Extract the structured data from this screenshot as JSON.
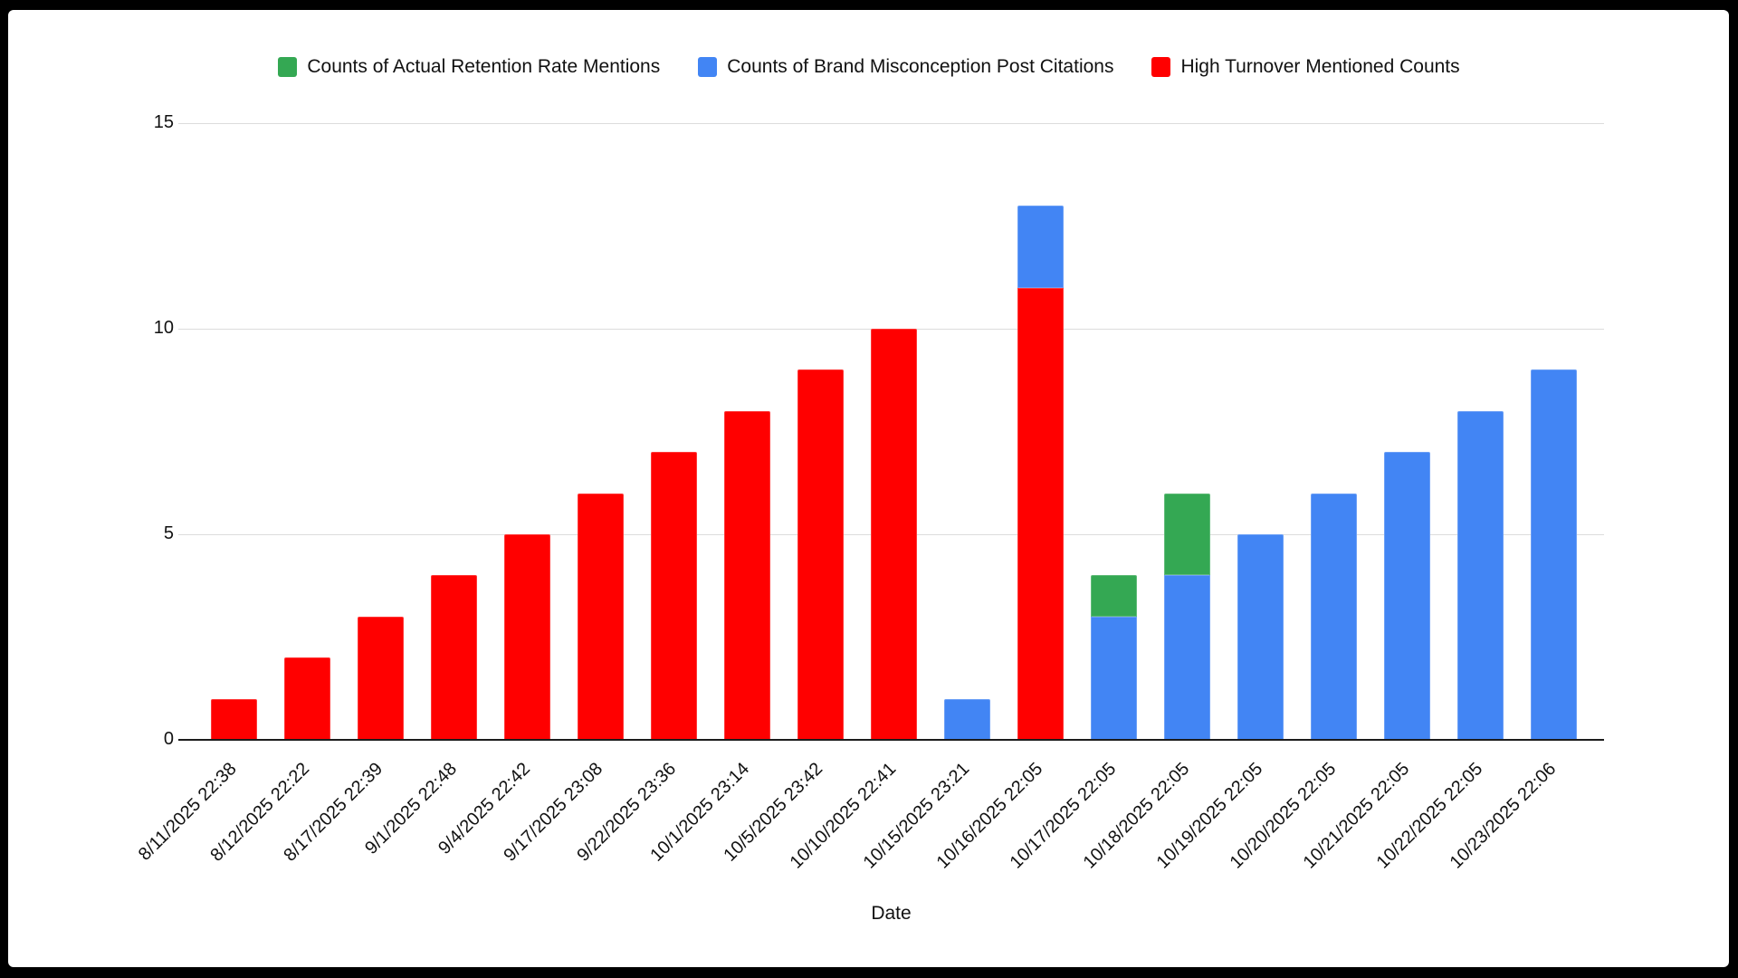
{
  "legend": {
    "items": [
      {
        "label": "Counts of Actual Retention Rate Mentions",
        "color": "#34a853"
      },
      {
        "label": "Counts of Brand Misconception Post Citations",
        "color": "#4285f4"
      },
      {
        "label": "High Turnover Mentioned Counts",
        "color": "#ff0000"
      }
    ]
  },
  "axes": {
    "x_title": "Date",
    "y_ticks": [
      0,
      5,
      10,
      15
    ]
  },
  "chart_data": {
    "type": "bar",
    "stacked": true,
    "title": "",
    "xlabel": "Date",
    "ylabel": "",
    "ylim": [
      0,
      15
    ],
    "yticks": [
      0,
      5,
      10,
      15
    ],
    "grid": true,
    "legend_position": "top",
    "categories": [
      "8/11/2025 22:38",
      "8/12/2025 22:22",
      "8/17/2025 22:39",
      "9/1/2025 22:48",
      "9/4/2025 22:42",
      "9/17/2025 23:08",
      "9/22/2025 23:36",
      "10/1/2025 23:14",
      "10/5/2025 23:42",
      "10/10/2025 22:41",
      "10/15/2025 23:21",
      "10/16/2025 22:05",
      "10/17/2025 22:05",
      "10/18/2025 22:05",
      "10/19/2025 22:05",
      "10/20/2025 22:05",
      "10/21/2025 22:05",
      "10/22/2025 22:05",
      "10/23/2025 22:06"
    ],
    "series": [
      {
        "name": "High Turnover Mentioned Counts",
        "color": "#ff0000",
        "values": [
          1,
          2,
          3,
          4,
          5,
          6,
          7,
          8,
          9,
          10,
          0,
          11,
          0,
          0,
          0,
          0,
          0,
          0,
          0
        ]
      },
      {
        "name": "Counts of Brand Misconception Post Citations",
        "color": "#4285f4",
        "values": [
          0,
          0,
          0,
          0,
          0,
          0,
          0,
          0,
          0,
          0,
          1,
          2,
          3,
          4,
          5,
          6,
          7,
          8,
          9
        ]
      },
      {
        "name": "Counts of Actual Retention Rate Mentions",
        "color": "#34a853",
        "values": [
          0,
          0,
          0,
          0,
          0,
          0,
          0,
          0,
          0,
          0,
          0,
          0,
          1,
          2,
          0,
          0,
          0,
          0,
          0
        ]
      }
    ]
  }
}
